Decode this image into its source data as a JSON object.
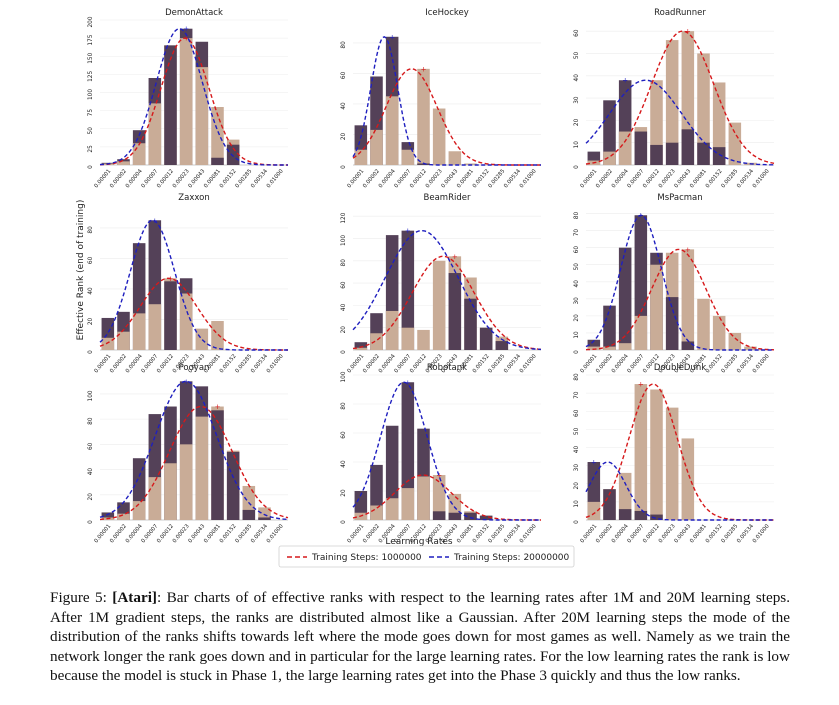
{
  "figure": {
    "ylabel": "Effective Rank (end of training)",
    "xlabel": "Learning Rates",
    "legend": {
      "placement": "bottom-center",
      "entries": [
        {
          "label": "Training Steps: 1000000",
          "color": "#d6191b",
          "style": "dashed"
        },
        {
          "label": "Training Steps: 20000000",
          "color": "#1f1fbf",
          "style": "dashed"
        }
      ]
    },
    "colors": {
      "short": "#c9ac97",
      "long": "#4e3b53"
    },
    "caption": {
      "label": "Figure 5:",
      "tag": "[Atari]",
      "text": ": Bar charts of of effective ranks with respect to the learning rates after 1M and 20M learning steps. After 1M gradient steps, the ranks are distributed almost like a Gaussian. After 20M learning steps the mode of the distribution of the ranks shifts towards left where the mode goes down for most games as well. Namely as we train the network longer the rank goes down and in particular for the large learning rates. For the low learning rates the rank is low because the model is stuck in Phase 1, the large learning rates get into the Phase 3 quickly and thus the low ranks."
    }
  },
  "chart_data": [
    {
      "type": "bar",
      "title": "DemonAttack",
      "categories": [
        "0.00001",
        "0.00002",
        "0.00004",
        "0.00007",
        "0.00012",
        "0.00023",
        "0.00043",
        "0.00081",
        "0.00152",
        "0.00285",
        "0.00534",
        "0.01000"
      ],
      "series": [
        {
          "name": "Training Steps: 1000000",
          "values": [
            2,
            5,
            30,
            85,
            165,
            175,
            135,
            80,
            35,
            0,
            0,
            0
          ]
        },
        {
          "name": "Training Steps: 20000000",
          "values": [
            3,
            8,
            48,
            120,
            165,
            188,
            170,
            10,
            28,
            0,
            0,
            0
          ]
        }
      ],
      "ylim": [
        0,
        200
      ],
      "yticks": [
        0,
        25,
        50,
        75,
        100,
        125,
        150,
        175,
        200
      ]
    },
    {
      "type": "bar",
      "title": "IceHockey",
      "categories": [
        "0.00001",
        "0.00002",
        "0.00004",
        "0.00007",
        "0.00012",
        "0.00023",
        "0.00043",
        "0.00081",
        "0.00152",
        "0.00285",
        "0.00534",
        "0.01000"
      ],
      "series": [
        {
          "name": "Training Steps: 1000000",
          "values": [
            10,
            23,
            45,
            10,
            63,
            37,
            9,
            1,
            0,
            0,
            0,
            0
          ]
        },
        {
          "name": "Training Steps: 20000000",
          "values": [
            26,
            58,
            84,
            15,
            1,
            0,
            0,
            0,
            0,
            0,
            0,
            0
          ]
        }
      ],
      "ylim": [
        0,
        95
      ],
      "yticks": [
        0,
        20,
        40,
        60,
        80
      ]
    },
    {
      "type": "bar",
      "title": "RoadRunner",
      "categories": [
        "0.00001",
        "0.00002",
        "0.00004",
        "0.00007",
        "0.00012",
        "0.00023",
        "0.00043",
        "0.00081",
        "0.00152",
        "0.00285",
        "0.00534",
        "0.01000"
      ],
      "series": [
        {
          "name": "Training Steps: 1000000",
          "values": [
            2,
            6,
            15,
            17,
            38,
            56,
            60,
            50,
            37,
            19,
            1,
            0
          ]
        },
        {
          "name": "Training Steps: 20000000",
          "values": [
            6,
            29,
            38,
            15,
            9,
            10,
            16,
            10,
            8,
            0,
            0,
            0
          ]
        }
      ],
      "ylim": [
        0,
        65
      ],
      "yticks": [
        0,
        10,
        20,
        30,
        40,
        50,
        60
      ]
    },
    {
      "type": "bar",
      "title": "Zaxxon",
      "categories": [
        "0.00001",
        "0.00002",
        "0.00004",
        "0.00007",
        "0.00012",
        "0.00023",
        "0.00043",
        "0.00081",
        "0.00152",
        "0.00285",
        "0.00534",
        "0.01000"
      ],
      "series": [
        {
          "name": "Training Steps: 1000000",
          "values": [
            8,
            12,
            24,
            30,
            47,
            37,
            14,
            19,
            0,
            0,
            0,
            0
          ]
        },
        {
          "name": "Training Steps: 20000000",
          "values": [
            21,
            25,
            70,
            85,
            45,
            47,
            0,
            0,
            0,
            0,
            0,
            0
          ]
        }
      ],
      "ylim": [
        0,
        95
      ],
      "yticks": [
        0,
        20,
        40,
        60,
        80
      ]
    },
    {
      "type": "bar",
      "title": "BeamRider",
      "categories": [
        "0.00001",
        "0.00002",
        "0.00004",
        "0.00007",
        "0.00012",
        "0.00023",
        "0.00043",
        "0.00081",
        "0.00152",
        "0.00285",
        "0.00534",
        "0.01000"
      ],
      "series": [
        {
          "name": "Training Steps: 1000000",
          "values": [
            2,
            15,
            35,
            20,
            18,
            80,
            84,
            65,
            20,
            12,
            0,
            0
          ]
        },
        {
          "name": "Training Steps: 20000000",
          "values": [
            7,
            33,
            103,
            107,
            0,
            0,
            69,
            46,
            20,
            8,
            0,
            0
          ]
        }
      ],
      "ylim": [
        0,
        130
      ],
      "yticks": [
        0,
        20,
        40,
        60,
        80,
        100,
        120
      ]
    },
    {
      "type": "bar",
      "title": "MsPacman",
      "categories": [
        "0.00001",
        "0.00002",
        "0.00004",
        "0.00007",
        "0.00012",
        "0.00023",
        "0.00043",
        "0.00081",
        "0.00152",
        "0.00285",
        "0.00534",
        "0.01000"
      ],
      "series": [
        {
          "name": "Training Steps: 1000000",
          "values": [
            2,
            2,
            4,
            20,
            50,
            57,
            59,
            30,
            20,
            10,
            2,
            0
          ]
        },
        {
          "name": "Training Steps: 20000000",
          "values": [
            6,
            26,
            60,
            79,
            57,
            31,
            5,
            0,
            0,
            0,
            0,
            0
          ]
        }
      ],
      "ylim": [
        0,
        85
      ],
      "yticks": [
        0,
        10,
        20,
        30,
        40,
        50,
        60,
        70,
        80
      ]
    },
    {
      "type": "bar",
      "title": "Pooyan",
      "categories": [
        "0.00001",
        "0.00002",
        "0.00004",
        "0.00007",
        "0.00012",
        "0.00023",
        "0.00043",
        "0.00081",
        "0.00152",
        "0.00285",
        "0.00534",
        "0.01000"
      ],
      "series": [
        {
          "name": "Training Steps: 1000000",
          "values": [
            2,
            5,
            15,
            34,
            45,
            60,
            82,
            90,
            55,
            27,
            10,
            0
          ]
        },
        {
          "name": "Training Steps: 20000000",
          "values": [
            6,
            14,
            49,
            84,
            90,
            110,
            106,
            87,
            54,
            8,
            2,
            0
          ]
        }
      ],
      "ylim": [
        0,
        115
      ],
      "yticks": [
        0,
        20,
        40,
        60,
        80,
        100
      ]
    },
    {
      "type": "bar",
      "title": "Robotank",
      "categories": [
        "0.00001",
        "0.00002",
        "0.00004",
        "0.00007",
        "0.00012",
        "0.00023",
        "0.00043",
        "0.00081",
        "0.00152",
        "0.00285",
        "0.00534",
        "0.01000"
      ],
      "series": [
        {
          "name": "Training Steps: 1000000",
          "values": [
            5,
            10,
            15,
            22,
            30,
            31,
            18,
            6,
            3,
            0,
            0,
            0
          ]
        },
        {
          "name": "Training Steps: 20000000",
          "values": [
            20,
            38,
            65,
            95,
            63,
            6,
            5,
            5,
            3,
            0,
            0,
            0
          ]
        }
      ],
      "ylim": [
        0,
        100
      ],
      "yticks": [
        0,
        20,
        40,
        60,
        80,
        100
      ]
    },
    {
      "type": "bar",
      "title": "DoubleDunk",
      "categories": [
        "0.00001",
        "0.00002",
        "0.00004",
        "0.00007",
        "0.00012",
        "0.00023",
        "0.00043",
        "0.00081",
        "0.00152",
        "0.00285",
        "0.00534",
        "0.01000"
      ],
      "series": [
        {
          "name": "Training Steps: 1000000",
          "values": [
            10,
            17,
            26,
            75,
            72,
            62,
            45,
            0,
            0,
            0,
            0,
            0
          ]
        },
        {
          "name": "Training Steps: 20000000",
          "values": [
            32,
            17,
            6,
            5,
            3,
            0,
            0,
            0,
            0,
            0,
            0,
            0
          ]
        }
      ],
      "ylim": [
        0,
        80
      ],
      "yticks": [
        0,
        10,
        20,
        30,
        40,
        50,
        60,
        70,
        80
      ]
    }
  ]
}
